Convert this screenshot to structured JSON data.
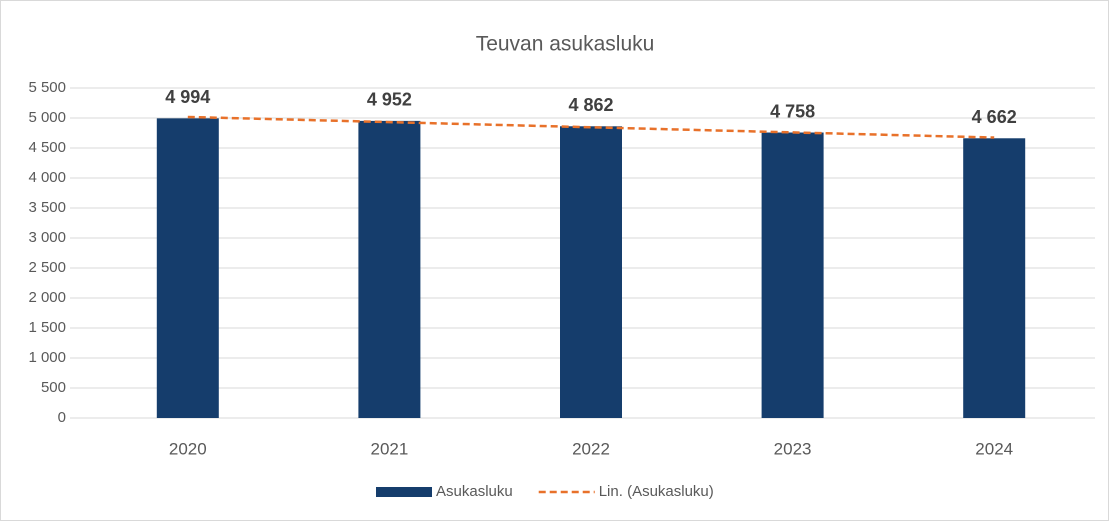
{
  "chart_data": {
    "type": "bar",
    "title": "Teuvan asukasluku",
    "categories": [
      "2020",
      "2021",
      "2022",
      "2023",
      "2024"
    ],
    "series": [
      {
        "name": "Asukasluku",
        "color": "#153d6c",
        "values": [
          4994,
          4952,
          4862,
          4758,
          4662
        ],
        "value_labels": [
          "4 994",
          "4 952",
          "4 862",
          "4 758",
          "4 662"
        ]
      },
      {
        "name": "Lin. (Asukasluku)",
        "type": "line",
        "dashed": true,
        "color": "#e8712a",
        "values": [
          5017.2,
          4931.4,
          4845.6,
          4759.8,
          4674
        ]
      }
    ],
    "ylim": [
      0,
      5500
    ],
    "yticks": [
      0,
      500,
      {
        "value": 1000,
        "label": "1 000"
      },
      {
        "value": 1500,
        "label": "1 500"
      },
      {
        "value": 2000,
        "label": "2 000"
      },
      {
        "value": 2500,
        "label": "2 500"
      },
      {
        "value": 3000,
        "label": "3 000"
      },
      {
        "value": 3500,
        "label": "3 500"
      },
      {
        "value": 4000,
        "label": "4 000"
      },
      {
        "value": 4500,
        "label": "4 500"
      },
      {
        "value": 5000,
        "label": "5 000"
      },
      {
        "value": 5500,
        "label": "5 500"
      }
    ],
    "grid": true,
    "legend": "bottom"
  }
}
